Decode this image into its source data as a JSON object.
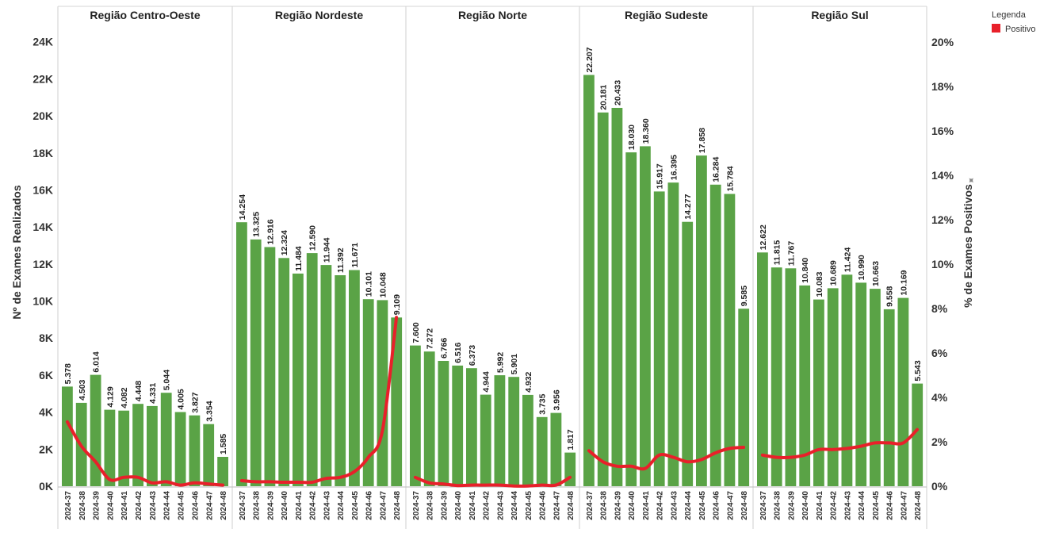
{
  "chart_data": {
    "type": "bar",
    "combo": "bar + line (dual axis)",
    "y_left_label": "Nº de Exames Realizados",
    "y_right_label": "% de Exames Positivos",
    "y_left_ticks": [
      "0K",
      "2K",
      "4K",
      "6K",
      "8K",
      "10K",
      "12K",
      "14K",
      "16K",
      "18K",
      "20K",
      "22K",
      "24K"
    ],
    "y_right_ticks": [
      "0%",
      "2%",
      "4%",
      "6%",
      "8%",
      "10%",
      "12%",
      "14%",
      "16%",
      "18%",
      "20%"
    ],
    "ylim_left": [
      0,
      24800
    ],
    "ylim_right": [
      0,
      0.2067
    ],
    "x_categories": [
      "2024-37",
      "2024-38",
      "2024-39",
      "2024-40",
      "2024-41",
      "2024-42",
      "2024-43",
      "2024-44",
      "2024-45",
      "2024-46",
      "2024-47",
      "2024-48"
    ],
    "legend": {
      "title": "Legenda",
      "items": [
        {
          "label": "Positivo",
          "color": "#e8202a"
        }
      ]
    },
    "bar_color": "#5aa346",
    "line_color": "#e8202a",
    "panels": [
      {
        "title": "Região Centro-Oeste",
        "values": [
          5378,
          4503,
          6014,
          4129,
          4082,
          4448,
          4331,
          5044,
          4005,
          3827,
          3354,
          1585
        ],
        "labels": [
          "5.378",
          "4.503",
          "6.014",
          "4.129",
          "4.082",
          "4.448",
          "4.331",
          "5.044",
          "4.005",
          "3.827",
          "3.354",
          "1.585"
        ],
        "pct_positive": [
          0.029,
          0.018,
          0.011,
          0.003,
          0.004,
          0.004,
          0.0015,
          0.002,
          0.0005,
          0.0015,
          0.001,
          0.0005
        ]
      },
      {
        "title": "Região Nordeste",
        "values": [
          14254,
          13325,
          12916,
          12324,
          11484,
          12590,
          11944,
          11392,
          11671,
          10101,
          10048,
          9109
        ],
        "labels": [
          "14.254",
          "13.325",
          "12.916",
          "12.324",
          "11.484",
          "12.590",
          "11.944",
          "11.392",
          "11.671",
          "10.101",
          "10.048",
          "9.109"
        ],
        "pct_positive": [
          0.0025,
          0.002,
          0.002,
          0.0018,
          0.0018,
          0.0018,
          0.0035,
          0.004,
          0.0065,
          0.013,
          0.025,
          0.076
        ]
      },
      {
        "title": "Região Norte",
        "values": [
          7600,
          7272,
          6766,
          6516,
          6373,
          4944,
          5992,
          5901,
          4932,
          3735,
          3956,
          1817
        ],
        "labels": [
          "7.600",
          "7.272",
          "6.766",
          "6.516",
          "6.373",
          "4.944",
          "5.992",
          "5.901",
          "4.932",
          "3.735",
          "3.956",
          "1.817"
        ],
        "pct_positive": [
          0.004,
          0.0015,
          0.001,
          0.0003,
          0.0005,
          0.0005,
          0.0005,
          0.0001,
          0.0001,
          0.0005,
          0.0005,
          0.004
        ]
      },
      {
        "title": "Região Sudeste",
        "values": [
          22207,
          20181,
          20433,
          18030,
          18360,
          15917,
          16395,
          14277,
          17858,
          16284,
          15784,
          9585
        ],
        "labels": [
          "22.207",
          "20.181",
          "20.433",
          "18.030",
          "18.360",
          "15.917",
          "16.395",
          "14.277",
          "17.858",
          "16.284",
          "15.784",
          "9.585"
        ],
        "pct_positive": [
          0.016,
          0.011,
          0.009,
          0.009,
          0.008,
          0.014,
          0.013,
          0.011,
          0.012,
          0.015,
          0.017,
          0.0175
        ]
      },
      {
        "title": "Região Sul",
        "values": [
          12622,
          11815,
          11767,
          10840,
          10083,
          10689,
          11424,
          10990,
          10663,
          9558,
          10169,
          5543
        ],
        "labels": [
          "12.622",
          "11.815",
          "11.767",
          "10.840",
          "10.083",
          "10.689",
          "11.424",
          "10.990",
          "10.663",
          "9.558",
          "10.169",
          "5.543"
        ],
        "pct_positive": [
          0.014,
          0.013,
          0.013,
          0.014,
          0.0165,
          0.0165,
          0.017,
          0.018,
          0.0195,
          0.0195,
          0.0195,
          0.0255
        ]
      }
    ]
  }
}
